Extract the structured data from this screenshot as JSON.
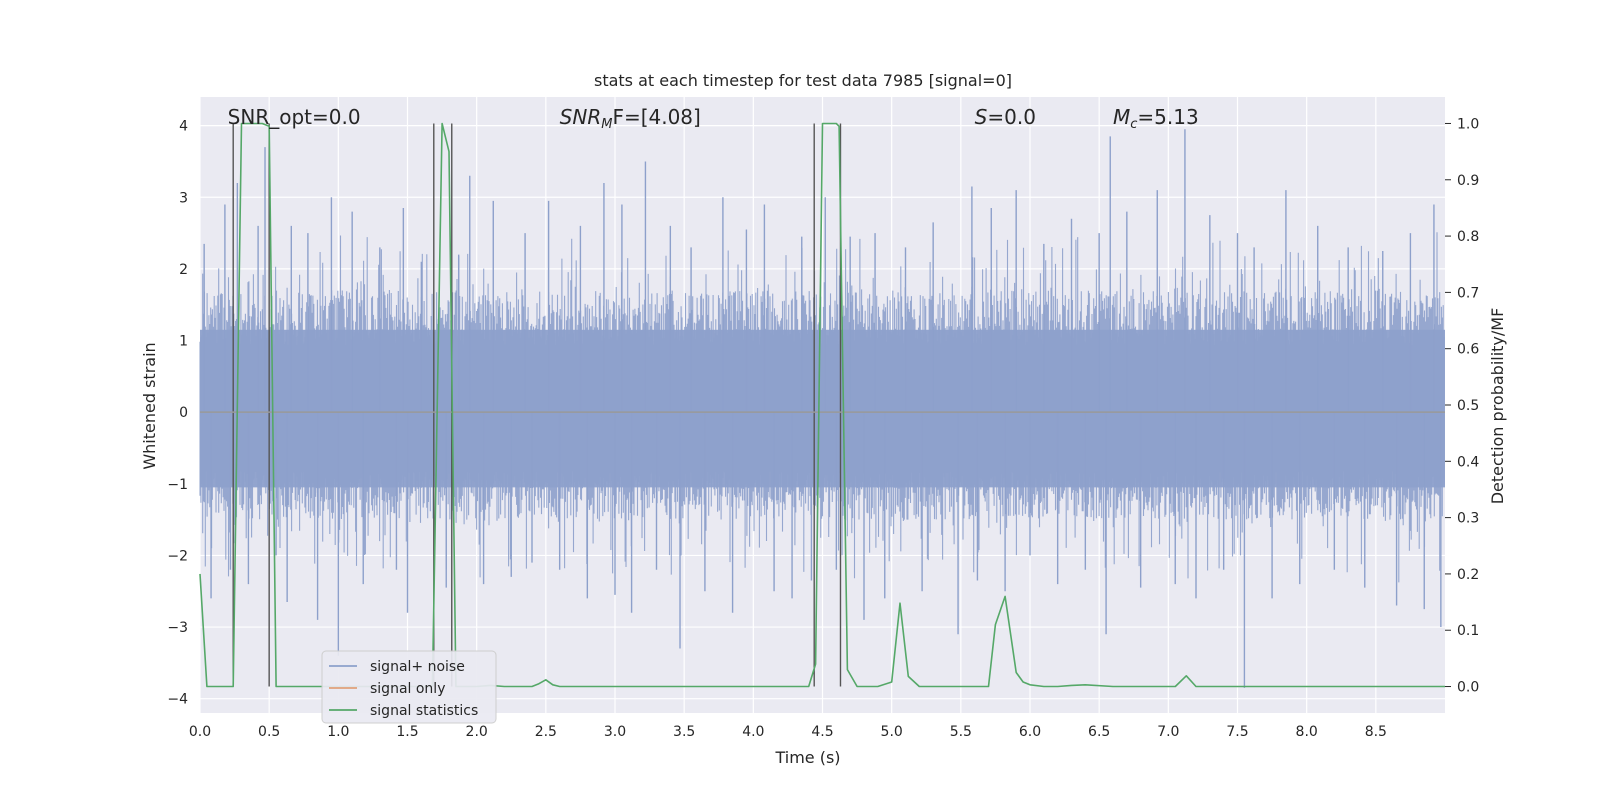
{
  "chart_data": {
    "type": "line",
    "title": "stats at each timestep for test data 7985 [signal=0]",
    "xlabel": "Time (s)",
    "ylabel": "Whitened strain",
    "y2label": "Detection probability/MF",
    "xlim": [
      0,
      9.0
    ],
    "ylim": [
      -4.2,
      4.4
    ],
    "y2lim": [
      -0.047,
      1.047
    ],
    "xticks": [
      0.0,
      0.5,
      1.0,
      1.5,
      2.0,
      2.5,
      3.0,
      3.5,
      4.0,
      4.5,
      5.0,
      5.5,
      6.0,
      6.5,
      7.0,
      7.5,
      8.0,
      8.5
    ],
    "xtick_labels": [
      "0.0",
      "0.5",
      "1.0",
      "1.5",
      "2.0",
      "2.5",
      "3.0",
      "3.5",
      "4.0",
      "4.5",
      "5.0",
      "5.5",
      "6.0",
      "6.5",
      "7.0",
      "7.5",
      "8.0",
      "8.5"
    ],
    "yticks": [
      -4,
      -3,
      -2,
      -1,
      0,
      1,
      2,
      3,
      4
    ],
    "ytick_labels": [
      "−4",
      "−3",
      "−2",
      "−1",
      "0",
      "1",
      "2",
      "3",
      "4"
    ],
    "y2ticks": [
      0.0,
      0.1,
      0.2,
      0.3,
      0.4,
      0.5,
      0.6,
      0.7,
      0.8,
      0.9,
      1.0
    ],
    "y2tick_labels": [
      "0.0",
      "0.1",
      "0.2",
      "0.3",
      "0.4",
      "0.5",
      "0.6",
      "0.7",
      "0.8",
      "0.9",
      "1.0"
    ],
    "grid": true,
    "legend_placement": "lower-left",
    "legend": [
      {
        "label": "signal+ noise",
        "color": "#8da0cb"
      },
      {
        "label": "signal only",
        "color": "#e1a07a"
      },
      {
        "label": "signal statistics",
        "color": "#55a868"
      }
    ],
    "annotations": [
      {
        "text": "SNR_opt=0.0",
        "x": 0.2
      },
      {
        "base": "SNR",
        "sub": "M",
        "rest": "F=[4.08]",
        "x": 2.6
      },
      {
        "italic": "S",
        "rest": "=0.0",
        "x": 5.6
      },
      {
        "italic": "M",
        "sub": "c",
        "rest": "=5.13",
        "x": 6.6
      }
    ],
    "series": [
      {
        "name": "signal+ noise",
        "color": "#8da0cb",
        "duration": 9.0,
        "typical_envelope": [
          -1.5,
          1.7
        ],
        "spikes": [
          [
            0.03,
            2.35
          ],
          [
            0.08,
            -2.6
          ],
          [
            0.18,
            2.9
          ],
          [
            0.22,
            -2.2
          ],
          [
            0.27,
            3.2
          ],
          [
            0.35,
            -2.4
          ],
          [
            0.42,
            2.6
          ],
          [
            0.47,
            3.7
          ],
          [
            0.55,
            -2.0
          ],
          [
            0.63,
            -2.65
          ],
          [
            0.66,
            2.6
          ],
          [
            0.78,
            2.5
          ],
          [
            0.85,
            -2.9
          ],
          [
            0.95,
            3.0
          ],
          [
            1.0,
            -3.4
          ],
          [
            1.1,
            2.8
          ],
          [
            1.18,
            -2.4
          ],
          [
            1.3,
            2.3
          ],
          [
            1.42,
            -2.2
          ],
          [
            1.47,
            2.85
          ],
          [
            1.5,
            -2.8
          ],
          [
            1.6,
            2.1
          ],
          [
            1.78,
            -2.45
          ],
          [
            1.87,
            2.2
          ],
          [
            1.95,
            3.3
          ],
          [
            2.05,
            -2.4
          ],
          [
            2.12,
            2.95
          ],
          [
            2.25,
            -2.3
          ],
          [
            2.35,
            2.5
          ],
          [
            2.4,
            -2.1
          ],
          [
            2.52,
            2.95
          ],
          [
            2.6,
            -2.2
          ],
          [
            2.75,
            2.6
          ],
          [
            2.8,
            -2.6
          ],
          [
            2.92,
            3.2
          ],
          [
            3.0,
            -2.55
          ],
          [
            3.05,
            2.9
          ],
          [
            3.12,
            -2.8
          ],
          [
            3.22,
            3.5
          ],
          [
            3.3,
            -2.2
          ],
          [
            3.4,
            2.6
          ],
          [
            3.47,
            -3.3
          ],
          [
            3.55,
            2.3
          ],
          [
            3.65,
            -2.5
          ],
          [
            3.78,
            3.0
          ],
          [
            3.85,
            -2.8
          ],
          [
            3.95,
            2.55
          ],
          [
            4.08,
            2.9
          ],
          [
            4.15,
            -2.5
          ],
          [
            4.28,
            -2.6
          ],
          [
            4.35,
            2.45
          ],
          [
            4.42,
            -2.35
          ],
          [
            4.52,
            3.0
          ],
          [
            4.6,
            -2.2
          ],
          [
            4.7,
            2.45
          ],
          [
            4.8,
            -2.9
          ],
          [
            4.88,
            2.5
          ],
          [
            4.95,
            -2.6
          ],
          [
            5.1,
            2.3
          ],
          [
            5.22,
            -2.5
          ],
          [
            5.3,
            2.65
          ],
          [
            5.48,
            -3.1
          ],
          [
            5.58,
            3.15
          ],
          [
            5.62,
            -2.35
          ],
          [
            5.72,
            2.85
          ],
          [
            5.82,
            -2.5
          ],
          [
            5.9,
            3.1
          ],
          [
            6.0,
            -2.0
          ],
          [
            6.1,
            2.35
          ],
          [
            6.2,
            -2.4
          ],
          [
            6.3,
            2.7
          ],
          [
            6.4,
            -2.2
          ],
          [
            6.5,
            2.5
          ],
          [
            6.55,
            -3.1
          ],
          [
            6.58,
            3.85
          ],
          [
            6.7,
            2.8
          ],
          [
            6.8,
            -2.45
          ],
          [
            6.92,
            3.1
          ],
          [
            7.05,
            -2.4
          ],
          [
            7.12,
            3.95
          ],
          [
            7.2,
            -2.6
          ],
          [
            7.3,
            2.75
          ],
          [
            7.4,
            -2.2
          ],
          [
            7.5,
            2.5
          ],
          [
            7.55,
            -3.85
          ],
          [
            7.62,
            2.3
          ],
          [
            7.75,
            -2.6
          ],
          [
            7.85,
            3.1
          ],
          [
            7.95,
            -2.4
          ],
          [
            8.08,
            2.6
          ],
          [
            8.2,
            -2.2
          ],
          [
            8.3,
            2.3
          ],
          [
            8.42,
            -2.45
          ],
          [
            8.55,
            2.25
          ],
          [
            8.65,
            -2.7
          ],
          [
            8.75,
            2.5
          ],
          [
            8.85,
            -2.75
          ],
          [
            8.92,
            2.9
          ],
          [
            8.97,
            -3.0
          ]
        ]
      },
      {
        "name": "signal only",
        "color": "#e1a07a",
        "x": [
          0,
          9.0
        ],
        "y": [
          0,
          0
        ]
      },
      {
        "name": "signal statistics",
        "color": "#55a868",
        "axis": "right",
        "x": [
          0.0,
          0.05,
          0.1,
          0.15,
          0.2,
          0.24,
          0.3,
          0.35,
          0.4,
          0.45,
          0.5,
          0.55,
          0.6,
          0.8,
          1.0,
          1.2,
          1.4,
          1.6,
          1.68,
          1.75,
          1.8,
          1.85,
          1.9,
          2.0,
          2.1,
          2.2,
          2.3,
          2.4,
          2.45,
          2.5,
          2.55,
          2.6,
          2.7,
          3.0,
          3.5,
          4.0,
          4.3,
          4.4,
          4.45,
          4.5,
          4.6,
          4.62,
          4.68,
          4.75,
          4.8,
          4.9,
          5.0,
          5.06,
          5.12,
          5.2,
          5.4,
          5.6,
          5.7,
          5.75,
          5.82,
          5.9,
          5.95,
          6.0,
          6.1,
          6.2,
          6.3,
          6.4,
          6.6,
          6.8,
          7.0,
          7.05,
          7.13,
          7.2,
          7.4,
          7.6,
          7.8,
          8.0,
          8.5,
          9.0
        ],
        "y": [
          0.2,
          0.0,
          0.0,
          0.0,
          0.0,
          0.0,
          1.0,
          1.0,
          1.0,
          1.0,
          0.995,
          0.0,
          0.0,
          0.0,
          0.0,
          0.0,
          0.0,
          0.0,
          0.0,
          1.0,
          0.95,
          0.0,
          0.0,
          0.0,
          0.002,
          0.0,
          0.0,
          0.0,
          0.005,
          0.012,
          0.003,
          0.0,
          0.0,
          0.0,
          0.0,
          0.0,
          0.0,
          0.0,
          0.04,
          1.0,
          1.0,
          0.995,
          0.03,
          0.0,
          0.0,
          0.0,
          0.008,
          0.148,
          0.018,
          0.0,
          0.0,
          0.0,
          0.0,
          0.11,
          0.16,
          0.025,
          0.008,
          0.003,
          0.0,
          0.0,
          0.002,
          0.003,
          0.0,
          0.0,
          0.0,
          0.0,
          0.019,
          0.0,
          0.0,
          0.0,
          0.0,
          0.0,
          0.0,
          0.0
        ]
      }
    ],
    "detection_markers": [
      0.24,
      0.5,
      1.69,
      1.82,
      4.44,
      4.63
    ]
  }
}
